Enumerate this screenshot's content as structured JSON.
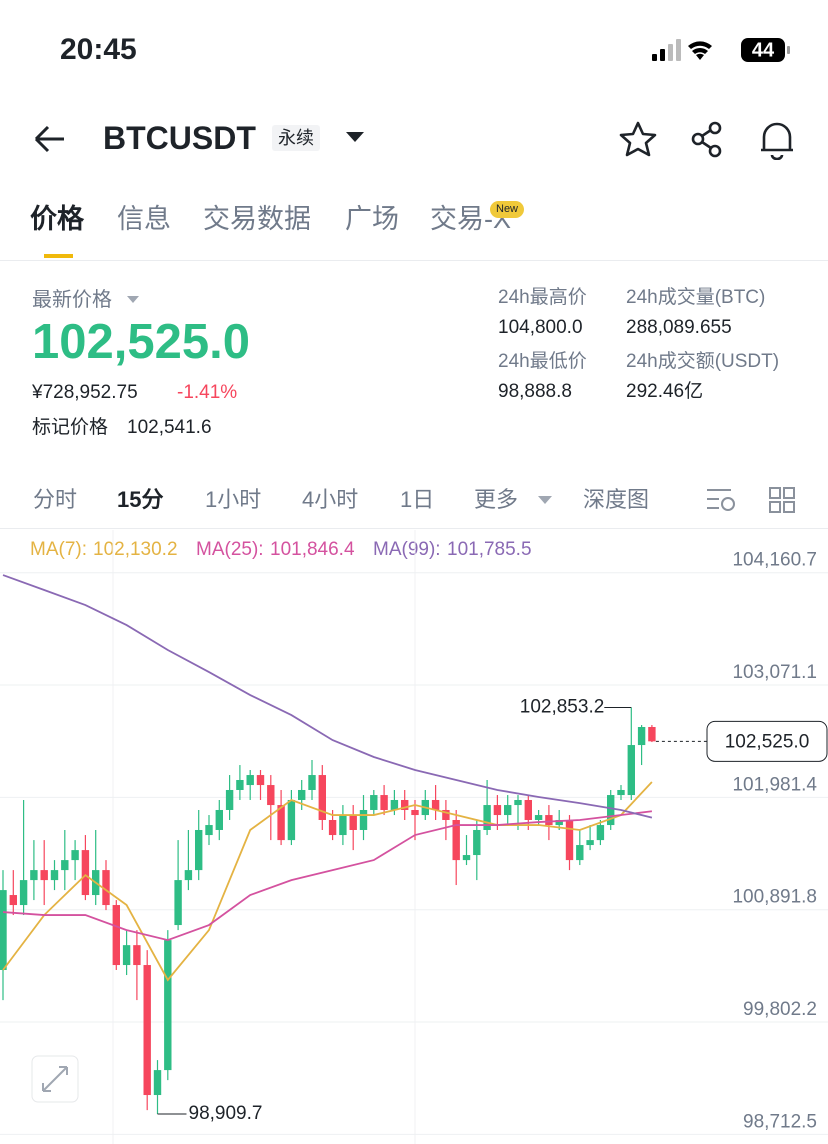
{
  "status_bar": {
    "time": "20:45",
    "battery": "44"
  },
  "header": {
    "symbol": "BTCUSDT",
    "contract": "永续"
  },
  "tabs": [
    "价格",
    "信息",
    "交易数据",
    "广场",
    "交易-X"
  ],
  "tab_badge": "New",
  "ticker": {
    "last_price_label": "最新价格",
    "last_price": "102,525.0",
    "cny_price": "¥728,952.75",
    "change": "-1.41%",
    "mark_price_label": "标记价格",
    "mark_price": "102,541.6",
    "stats": [
      {
        "label": "24h最高价",
        "value": "104,800.0"
      },
      {
        "label": "24h成交量(BTC)",
        "value": "288,089.655"
      },
      {
        "label": "24h最低价",
        "value": "98,888.8"
      },
      {
        "label": "24h成交额(USDT)",
        "value": "292.46亿"
      }
    ]
  },
  "intervals": [
    "分时",
    "15分",
    "1小时",
    "4小时",
    "1日",
    "更多",
    "深度图"
  ],
  "chart_data": {
    "type": "candlestick",
    "up_color": "#2ebd85",
    "down_color": "#f6465d",
    "open": [
      100307,
      101034,
      100937,
      101179,
      101276,
      101179,
      101276,
      101373,
      101470,
      101034,
      101276,
      100937,
      100355,
      100548,
      100355,
      99094,
      99336,
      100743,
      101179,
      101276,
      101616,
      101665,
      101859,
      102053,
      102101,
      102198,
      102101,
      101907,
      101567,
      101956,
      102053,
      102198,
      101762,
      101616,
      101810,
      101665,
      101859,
      102004,
      101859,
      101956,
      101859,
      101810,
      101956,
      101859,
      101762,
      101373,
      101422,
      101665,
      101907,
      101810,
      101907,
      101956,
      101762,
      101810,
      101713,
      101762,
      101373,
      101519,
      101567,
      101713,
      102004,
      102004,
      102489,
      102664
    ],
    "high": [
      101276,
      101276,
      101956,
      101567,
      101567,
      101373,
      101665,
      101567,
      101616,
      101665,
      101373,
      100985,
      100694,
      100694,
      100500,
      99433,
      100694,
      101567,
      101665,
      101859,
      101810,
      101956,
      102198,
      102295,
      102247,
      102247,
      102198,
      102053,
      102053,
      102150,
      102344,
      102295,
      101859,
      101907,
      101907,
      102004,
      102053,
      102101,
      102053,
      102053,
      101956,
      102053,
      102101,
      101956,
      101859,
      101616,
      101762,
      102150,
      102004,
      102004,
      102004,
      102004,
      101859,
      101907,
      101859,
      101810,
      101665,
      101713,
      101762,
      102053,
      102101,
      102853.2,
      102683,
      102683
    ],
    "low": [
      100015,
      100840,
      100840,
      100985,
      100937,
      101082,
      101082,
      101179,
      100985,
      100937,
      100888,
      100307,
      100258,
      100015,
      98948,
      98909.7,
      99239,
      100694,
      101082,
      101179,
      101519,
      101567,
      101762,
      101956,
      101956,
      101956,
      101567,
      101519,
      101519,
      101859,
      101956,
      101665,
      101567,
      101519,
      101470,
      101567,
      101810,
      101810,
      101810,
      101762,
      101567,
      101762,
      101762,
      101567,
      101131,
      101325,
      101179,
      101616,
      101665,
      101713,
      101665,
      101665,
      101713,
      101567,
      101665,
      101276,
      101325,
      101470,
      101519,
      101665,
      101956,
      101956,
      102295,
      102518
    ],
    "close": [
      101082,
      100937,
      101179,
      101276,
      101179,
      101276,
      101373,
      101470,
      101034,
      101276,
      100937,
      100355,
      100548,
      100355,
      99094,
      99336,
      100597,
      101179,
      101276,
      101665,
      101713,
      101859,
      102053,
      102150,
      102198,
      102101,
      101907,
      101567,
      101956,
      102053,
      102198,
      101762,
      101616,
      101810,
      101665,
      101859,
      102004,
      101859,
      101956,
      101859,
      101810,
      101956,
      101859,
      101762,
      101373,
      101422,
      101665,
      101907,
      101810,
      101907,
      101956,
      101762,
      101810,
      101713,
      101762,
      101373,
      101519,
      101567,
      101713,
      102004,
      102053,
      102489,
      102664,
      102525.0
    ],
    "series": [
      {
        "name": "MA(7):",
        "color": "#e4b343",
        "current": {
          "value": 102130.2,
          "label": "102,130.2"
        },
        "x": [
          0,
          4,
          8,
          12,
          16,
          20,
          24,
          28,
          32,
          36,
          40,
          44,
          48,
          52,
          56,
          60,
          63
        ],
        "values": [
          100307,
          100840,
          101227,
          100937,
          100210,
          100694,
          101665,
          101956,
          101810,
          101810,
          101907,
          101810,
          101713,
          101713,
          101665,
          101810,
          102130.2
        ]
      },
      {
        "name": "MA(25):",
        "color": "#d4529f",
        "current": {
          "value": 101846.4,
          "label": "101,846.4"
        },
        "x": [
          0,
          4,
          8,
          12,
          16,
          20,
          24,
          28,
          32,
          36,
          40,
          44,
          48,
          52,
          56,
          60,
          63
        ],
        "values": [
          100869,
          100840,
          100840,
          100694,
          100597,
          100743,
          101034,
          101179,
          101276,
          101373,
          101616,
          101713,
          101713,
          101742,
          101762,
          101810,
          101846.4
        ]
      },
      {
        "name": "MA(99):",
        "color": "#8a69b4",
        "current": {
          "value": 101785.5,
          "label": "101,785.5"
        },
        "x": [
          0,
          4,
          8,
          12,
          16,
          20,
          24,
          28,
          32,
          36,
          40,
          44,
          48,
          52,
          56,
          60,
          63
        ],
        "values": [
          104138,
          103993,
          103847,
          103653,
          103411,
          103197,
          102974,
          102780,
          102537,
          102373,
          102247,
          102150,
          102053,
          101985,
          101926,
          101859,
          101785.5
        ]
      }
    ],
    "ylim": [
      98619,
      104478
    ],
    "yticks": [
      {
        "value": 104160.7,
        "label": "104,160.7"
      },
      {
        "value": 103071.1,
        "label": "103,071.1"
      },
      {
        "value": 101981.4,
        "label": "101,981.4"
      },
      {
        "value": 100891.8,
        "label": "100,891.8"
      },
      {
        "value": 99802.2,
        "label": "99,802.2"
      },
      {
        "value": 98712.5,
        "label": "98,712.5"
      }
    ],
    "grid": true,
    "annotations": {
      "high": {
        "value": 102853.2,
        "label": "102,853.2"
      },
      "low": {
        "value": 98909.7,
        "label": "98,909.7"
      },
      "last": {
        "value": 102525.0,
        "label": "102,525.0"
      }
    }
  }
}
